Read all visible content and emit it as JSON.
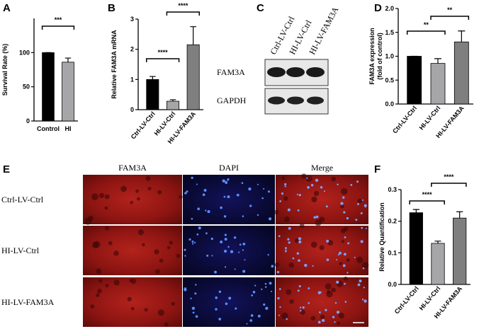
{
  "chart_data": [
    {
      "type": "bar",
      "panel": "A",
      "ylabel": [
        "Survival Rate (%)"
      ],
      "categories": [
        "Control",
        "HI"
      ],
      "values": [
        100,
        86
      ],
      "errors": [
        0,
        6
      ],
      "colors": [
        "#000000",
        "#a6a6a8"
      ],
      "ylim": [
        0,
        150
      ],
      "yticks": [
        0,
        50,
        100
      ],
      "significance": [
        {
          "label": "***",
          "between": [
            "Control",
            "HI"
          ]
        }
      ]
    },
    {
      "type": "bar",
      "panel": "B",
      "ylabel": [
        "Relative  FAM3A mRNA"
      ],
      "categories": [
        "Ctrl-LV-Ctrl",
        "HI-LV-Ctrl",
        "HI-LV-FAM3A"
      ],
      "values": [
        1.0,
        0.28,
        2.15
      ],
      "errors": [
        0.1,
        0.05,
        0.6
      ],
      "colors": [
        "#000000",
        "#a6a6a8",
        "#7f7f7f"
      ],
      "ylim": [
        0,
        3
      ],
      "yticks": [
        0,
        1,
        2,
        3
      ],
      "significance": [
        {
          "label": "****",
          "between": [
            "Ctrl-LV-Ctrl",
            "HI-LV-Ctrl"
          ]
        },
        {
          "label": "****",
          "between": [
            "HI-LV-Ctrl",
            "HI-LV-FAM3A"
          ]
        }
      ]
    },
    {
      "type": "bar",
      "panel": "D",
      "ylabel": [
        "FAM3A expression",
        "(fold of control)"
      ],
      "categories": [
        "Ctrl-LV-Ctrl",
        "HI-LV-Ctrl",
        "HI-LV-FAM3A"
      ],
      "values": [
        1.0,
        0.85,
        1.3
      ],
      "errors": [
        0,
        0.1,
        0.23
      ],
      "colors": [
        "#000000",
        "#a6a6a8",
        "#7f7f7f"
      ],
      "ylim": [
        0,
        2
      ],
      "yticks": [
        {
          "value": 0,
          "label": "0.0"
        },
        {
          "value": 0.5,
          "label": "0.5"
        },
        {
          "value": 1,
          "label": "1.0"
        },
        {
          "value": 1.5,
          "label": "1.5"
        },
        {
          "value": 2,
          "label": "2.0"
        }
      ],
      "significance": [
        {
          "label": "**",
          "between": [
            "Ctrl-LV-Ctrl",
            "HI-LV-Ctrl"
          ]
        },
        {
          "label": "**",
          "between": [
            "HI-LV-Ctrl",
            "HI-LV-FAM3A"
          ]
        }
      ]
    },
    {
      "type": "bar",
      "panel": "F",
      "ylabel": [
        "Relative  Quantification"
      ],
      "categories": [
        "Ctrl-LV-Ctrl",
        "HI-LV-Ctrl",
        "HI-LV-FAM3A"
      ],
      "values": [
        0.227,
        0.13,
        0.21
      ],
      "errors": [
        0.01,
        0.007,
        0.02
      ],
      "colors": [
        "#000000",
        "#a6a6a8",
        "#7f7f7f"
      ],
      "ylim": [
        0,
        0.3
      ],
      "yticks": [
        {
          "value": 0,
          "label": "0.0"
        },
        0.1,
        0.2,
        0.3
      ],
      "significance": [
        {
          "label": "****",
          "between": [
            "Ctrl-LV-Ctrl",
            "HI-LV-Ctrl"
          ]
        },
        {
          "label": "****",
          "between": [
            "HI-LV-Ctrl",
            "HI-LV-FAM3A"
          ]
        }
      ]
    }
  ],
  "blot": {
    "panel": "C",
    "lanes": [
      "Ctrl-LV-Ctrl",
      "HI-LV-Ctrl",
      "HI-LV-FAM3A"
    ],
    "rows": [
      "FAM3A",
      "GAPDH"
    ]
  },
  "microscopy": {
    "panel": "E",
    "columns": [
      "FAM3A",
      "DAPI",
      "Merge"
    ],
    "rows": [
      "Ctrl-LV-Ctrl",
      "HI-LV-Ctrl",
      "HI-LV-FAM3A"
    ]
  }
}
